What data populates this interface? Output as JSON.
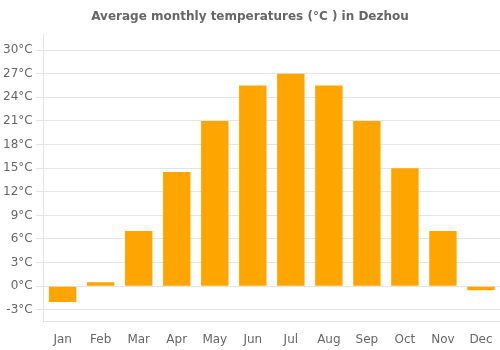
{
  "chart_data": {
    "type": "bar",
    "title": "Average monthly temperatures (°C ) in Dezhou",
    "categories": [
      "Jan",
      "Feb",
      "Mar",
      "Apr",
      "May",
      "Jun",
      "Jul",
      "Aug",
      "Sep",
      "Oct",
      "Nov",
      "Dec"
    ],
    "values": [
      -2.0,
      0.5,
      7.0,
      14.5,
      21.0,
      25.5,
      27.0,
      25.5,
      21.0,
      15.0,
      7.0,
      -0.5
    ],
    "color": "#FFA500",
    "ylim": [
      -4.5,
      32
    ],
    "yticks": [
      {
        "value": -3,
        "label": "-3°C"
      },
      {
        "value": 0,
        "label": "0°C"
      },
      {
        "value": 3,
        "label": "3°C"
      },
      {
        "value": 6,
        "label": "6°C"
      },
      {
        "value": 9,
        "label": "9°C"
      },
      {
        "value": 12,
        "label": "12°C"
      },
      {
        "value": 15,
        "label": "15°C"
      },
      {
        "value": 18,
        "label": "18°C"
      },
      {
        "value": 21,
        "label": "21°C"
      },
      {
        "value": 24,
        "label": "24°C"
      },
      {
        "value": 27,
        "label": "27°C"
      },
      {
        "value": 30,
        "label": "30°C"
      }
    ],
    "grid": true
  }
}
